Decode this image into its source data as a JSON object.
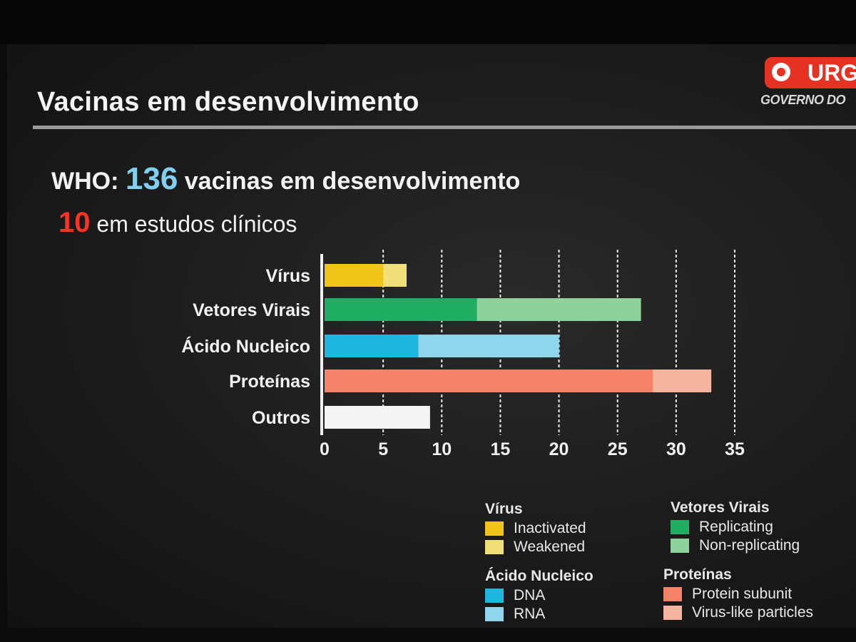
{
  "header": {
    "title": "Vacinas em desenvolvimento",
    "logo_text": "URG",
    "logo_sub": "GOVERNO DO"
  },
  "headline": {
    "prefix": "WHO:",
    "number": "136",
    "suffix": "vacinas em desenvolvimento"
  },
  "subline": {
    "number": "10",
    "text": "em estudos clínicos"
  },
  "colors": {
    "inactivated": "#f0c419",
    "weakened": "#f1df7a",
    "replicating": "#1fae63",
    "non_replicating": "#8fd19a",
    "dna": "#1fb6e0",
    "rna": "#8fd6ec",
    "protein_subunit": "#f4826a",
    "virus_like": "#f5b4a0",
    "outros": "#f4f4f4"
  },
  "chart_data": {
    "type": "bar",
    "orientation": "horizontal",
    "stacked": true,
    "categories": [
      "Vírus",
      "Vetores Virais",
      "Ácido Nucleico",
      "Proteínas",
      "Outros"
    ],
    "series": [
      {
        "group": "Vírus",
        "name": "Inactivated",
        "category": "Vírus",
        "value": 5,
        "color_key": "inactivated"
      },
      {
        "group": "Vírus",
        "name": "Weakened",
        "category": "Vírus",
        "value": 2,
        "color_key": "weakened"
      },
      {
        "group": "Vetores Virais",
        "name": "Replicating",
        "category": "Vetores Virais",
        "value": 13,
        "color_key": "replicating"
      },
      {
        "group": "Vetores Virais",
        "name": "Non-replicating",
        "category": "Vetores Virais",
        "value": 14,
        "color_key": "non_replicating"
      },
      {
        "group": "Ácido Nucleico",
        "name": "DNA",
        "category": "Ácido Nucleico",
        "value": 8,
        "color_key": "dna"
      },
      {
        "group": "Ácido Nucleico",
        "name": "RNA",
        "category": "Ácido Nucleico",
        "value": 12,
        "color_key": "rna"
      },
      {
        "group": "Proteínas",
        "name": "Protein subunit",
        "category": "Proteínas",
        "value": 28,
        "color_key": "protein_subunit"
      },
      {
        "group": "Proteínas",
        "name": "Virus-like particles",
        "category": "Proteínas",
        "value": 5,
        "color_key": "virus_like"
      },
      {
        "group": "",
        "name": "",
        "category": "Outros",
        "value": 9,
        "color_key": "outros"
      }
    ],
    "xlim": [
      0,
      35
    ],
    "xticks": [
      0,
      5,
      10,
      15,
      20,
      25,
      30,
      35
    ],
    "grid": "vertical dashed",
    "legend_position": "bottom-right"
  },
  "legend": {
    "groups": [
      {
        "title": "Vírus",
        "items": [
          {
            "label": "Inactivated",
            "color_key": "inactivated"
          },
          {
            "label": "Weakened",
            "color_key": "weakened"
          }
        ]
      },
      {
        "title": "Vetores Virais",
        "items": [
          {
            "label": "Replicating",
            "color_key": "replicating"
          },
          {
            "label": "Non-replicating",
            "color_key": "non_replicating"
          }
        ]
      },
      {
        "title": "Ácido Nucleico",
        "items": [
          {
            "label": "DNA",
            "color_key": "dna"
          },
          {
            "label": "RNA",
            "color_key": "rna"
          }
        ]
      },
      {
        "title": "Proteínas",
        "items": [
          {
            "label": "Protein subunit",
            "color_key": "protein_subunit"
          },
          {
            "label": "Virus-like particles",
            "color_key": "virus_like"
          }
        ]
      }
    ]
  }
}
